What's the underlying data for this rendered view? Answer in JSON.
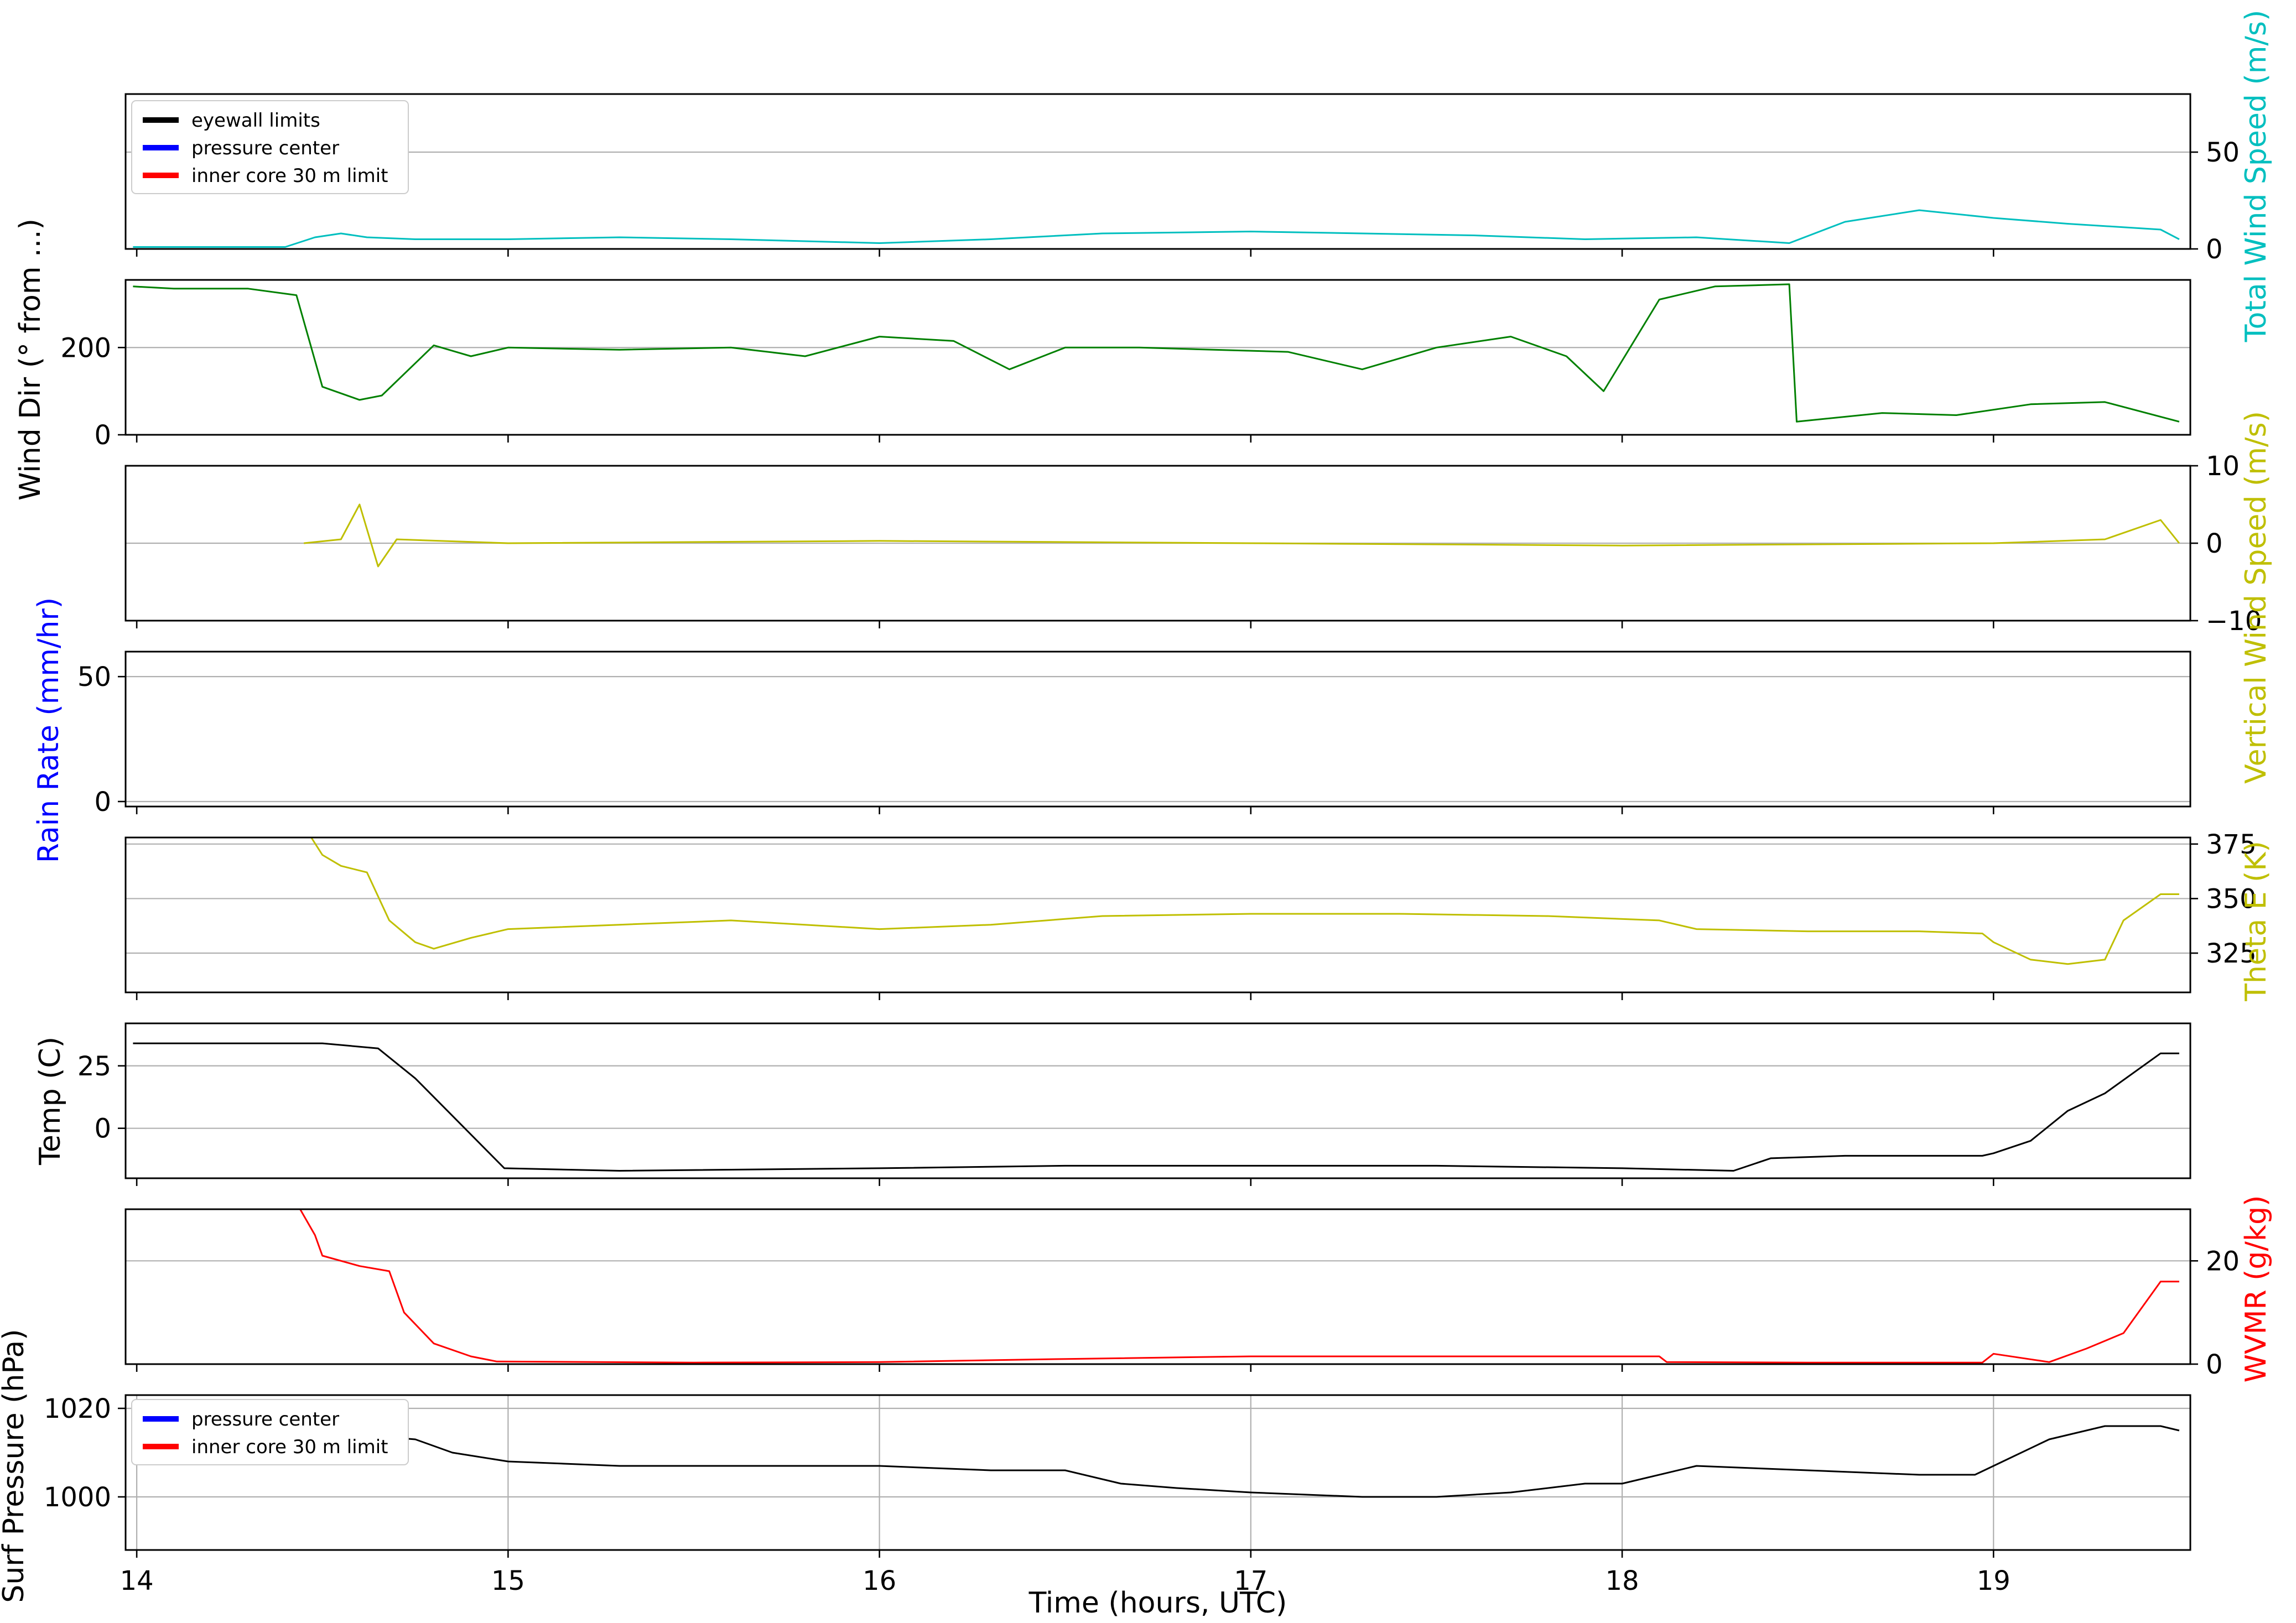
{
  "xaxis": {
    "label": "Time (hours, UTC)",
    "range": [
      13.97,
      19.53
    ],
    "ticks": [
      14,
      15,
      16,
      17,
      18,
      19
    ]
  },
  "top_legend": [
    {
      "label": "eyewall limits",
      "color": "#000000"
    },
    {
      "label": "pressure center",
      "color": "#0000ff"
    },
    {
      "label": "inner core 30 m limit",
      "color": "#ff0000"
    }
  ],
  "bottom_legend": [
    {
      "label": "pressure center",
      "color": "#0000ff"
    },
    {
      "label": "inner core 30 m limit",
      "color": "#ff0000"
    }
  ],
  "ylabels": {
    "total_wind_speed": {
      "parts": [
        [
          "Total ",
          "#00bfbf"
        ],
        [
          "Wind ",
          "#00bfbf"
        ],
        [
          "Speed (m/s)",
          "#00bfbf"
        ]
      ]
    },
    "wind_dir": {
      "parts": [
        [
          "Wind Dir (° from ...)",
          "#000000"
        ]
      ]
    },
    "vertical_wind_speed": {
      "parts": [
        [
          "Vertical Wind Speed (m/s)",
          "#bfbf00"
        ]
      ]
    },
    "rain_rate": {
      "parts": [
        [
          "Rain Rate (mm/hr)",
          "#0000ff"
        ]
      ]
    },
    "theta_e": {
      "parts": [
        [
          "Theta E (K)",
          "#bfbf00"
        ]
      ]
    },
    "temp": {
      "parts": [
        [
          "Temp (C)",
          "#000000"
        ]
      ]
    },
    "wvmr": {
      "parts": [
        [
          "WVMR (g/kg)",
          "#ff0000"
        ]
      ]
    },
    "surf_pressure": {
      "parts": [
        [
          "Surf Pressure (hPa)",
          "#000000"
        ]
      ]
    }
  },
  "chart_data": [
    {
      "id": "total_wind_speed",
      "type": "line",
      "ylabel": "Total Wind Speed (m/s)",
      "ylim": [
        0,
        80
      ],
      "yticks": [
        0,
        50
      ],
      "yaxis_side": "right",
      "grid": "y",
      "color": "#00bfbf",
      "series": [
        {
          "x": [
            13.99,
            14.4,
            14.48,
            14.55,
            14.62,
            14.75,
            15.0,
            15.3,
            15.6,
            16.0,
            16.3,
            16.6,
            17.0,
            17.3,
            17.6,
            17.9,
            18.2,
            18.45,
            18.6,
            18.8,
            19.0,
            19.2,
            19.45,
            19.5
          ],
          "y": [
            1,
            1,
            6,
            8,
            6,
            5,
            5,
            6,
            5,
            3,
            5,
            8,
            9,
            8,
            7,
            5,
            6,
            3,
            14,
            20,
            16,
            13,
            10,
            5
          ]
        }
      ]
    },
    {
      "id": "wind_dir",
      "type": "line",
      "ylabel": "Wind Dir (° from ...)",
      "ylim": [
        0,
        355
      ],
      "yticks": [
        0,
        200
      ],
      "yaxis_side": "left",
      "grid": "y",
      "color": "#008000",
      "series": [
        {
          "x": [
            13.99,
            14.1,
            14.3,
            14.43,
            14.5,
            14.6,
            14.66,
            14.8,
            14.9,
            15.0,
            15.3,
            15.6,
            15.8,
            16.0,
            16.2,
            16.35,
            16.5,
            16.7,
            16.9,
            17.1,
            17.3,
            17.5,
            17.7,
            17.85,
            17.95,
            18.1,
            18.25,
            18.45,
            18.47,
            18.7,
            18.9,
            19.1,
            19.3,
            19.5
          ],
          "y": [
            340,
            335,
            335,
            320,
            110,
            80,
            90,
            205,
            180,
            200,
            195,
            200,
            180,
            225,
            215,
            150,
            200,
            200,
            195,
            190,
            150,
            200,
            225,
            180,
            100,
            310,
            340,
            345,
            30,
            50,
            45,
            70,
            75,
            30
          ]
        }
      ]
    },
    {
      "id": "vertical_wind_speed",
      "type": "line",
      "ylabel": "Vertical Wind Speed (m/s)",
      "ylim": [
        -10,
        10
      ],
      "yticks": [
        -10,
        0,
        10
      ],
      "yaxis_side": "right",
      "grid": "y",
      "color": "#bfbf00",
      "series": [
        {
          "x": [
            14.45,
            14.55,
            14.6,
            14.65,
            14.7,
            15.0,
            16.0,
            17.0,
            18.0,
            19.0,
            19.3,
            19.45,
            19.5
          ],
          "y": [
            0,
            0.5,
            5,
            -3,
            0.5,
            0,
            0.3,
            0,
            -0.3,
            0,
            0.5,
            3,
            0
          ]
        }
      ]
    },
    {
      "id": "rain_rate",
      "type": "line",
      "ylabel": "Rain Rate (mm/hr)",
      "ylim": [
        -2,
        60
      ],
      "yticks": [
        0,
        50
      ],
      "yaxis_side": "left",
      "grid": "y",
      "color": "#0000ff",
      "series": []
    },
    {
      "id": "theta_e",
      "type": "line",
      "ylabel": "Theta E (K)",
      "ylim": [
        307,
        378
      ],
      "yticks": [
        325,
        350,
        375
      ],
      "yaxis_side": "right",
      "grid": "y",
      "color": "#bfbf00",
      "series": [
        {
          "x": [
            14.47,
            14.5,
            14.55,
            14.62,
            14.68,
            14.75,
            14.8,
            14.9,
            15.0,
            15.3,
            15.6,
            16.0,
            16.3,
            16.6,
            17.0,
            17.4,
            17.8,
            18.1,
            18.2,
            18.5,
            18.8,
            18.97,
            19.0,
            19.1,
            19.2,
            19.3,
            19.35,
            19.45,
            19.5
          ],
          "y": [
            378,
            370,
            365,
            362,
            340,
            330,
            327,
            332,
            336,
            338,
            340,
            336,
            338,
            342,
            343,
            343,
            342,
            340,
            336,
            335,
            335,
            334,
            330,
            322,
            320,
            322,
            340,
            352,
            352
          ]
        }
      ]
    },
    {
      "id": "temp",
      "type": "line",
      "ylabel": "Temp (C)",
      "ylim": [
        -20,
        42
      ],
      "yticks": [
        0,
        25
      ],
      "yaxis_side": "left",
      "grid": "y",
      "color": "#000000",
      "series": [
        {
          "x": [
            13.99,
            14.2,
            14.5,
            14.65,
            14.75,
            14.85,
            14.99,
            15.3,
            16.0,
            16.5,
            17.0,
            17.5,
            18.0,
            18.3,
            18.4,
            18.6,
            18.97,
            19.0,
            19.1,
            19.2,
            19.3,
            19.45,
            19.5
          ],
          "y": [
            34,
            34,
            34,
            32,
            20,
            5,
            -16,
            -17,
            -16,
            -15,
            -15,
            -15,
            -16,
            -17,
            -12,
            -11,
            -11,
            -10,
            -5,
            7,
            14,
            30,
            30
          ]
        }
      ]
    },
    {
      "id": "wvmr",
      "type": "line",
      "ylabel": "WVMR (g/kg)",
      "ylim": [
        0,
        30
      ],
      "yticks": [
        0,
        20
      ],
      "yaxis_side": "right",
      "grid": "y",
      "color": "#ff0000",
      "series": [
        {
          "x": [
            14.44,
            14.48,
            14.5,
            14.6,
            14.68,
            14.72,
            14.8,
            14.9,
            14.97,
            15.5,
            16.0,
            16.5,
            17.0,
            17.5,
            18.1,
            18.12,
            18.5,
            18.97,
            19.0,
            19.15,
            19.25,
            19.35,
            19.45,
            19.5
          ],
          "y": [
            30,
            25,
            21,
            19,
            18,
            10,
            4,
            1.5,
            0.5,
            0.3,
            0.4,
            1,
            1.5,
            1.5,
            1.5,
            0.4,
            0.3,
            0.3,
            2,
            0.4,
            3,
            6,
            16,
            16
          ]
        }
      ]
    },
    {
      "id": "surf_pressure",
      "type": "line",
      "ylabel": "Surf Pressure (hPa)",
      "ylim": [
        988,
        1023
      ],
      "yticks": [
        1000,
        1020
      ],
      "yaxis_side": "left",
      "grid": "both",
      "color": "#000000",
      "series": [
        {
          "x": [
            14.5,
            14.6,
            14.75,
            14.85,
            15.0,
            15.3,
            15.5,
            15.8,
            16.0,
            16.3,
            16.5,
            16.65,
            16.8,
            17.0,
            17.3,
            17.5,
            17.7,
            17.9,
            18.0,
            18.2,
            18.5,
            18.8,
            18.95,
            19.0,
            19.05,
            19.15,
            19.3,
            19.45,
            19.5
          ],
          "y": [
            1014,
            1014,
            1013,
            1010,
            1008,
            1007,
            1007,
            1007,
            1007,
            1006,
            1006,
            1003,
            1002,
            1001,
            1000,
            1000,
            1001,
            1003,
            1003,
            1007,
            1006,
            1005,
            1005,
            1007,
            1009,
            1013,
            1016,
            1016,
            1015
          ]
        }
      ]
    }
  ]
}
